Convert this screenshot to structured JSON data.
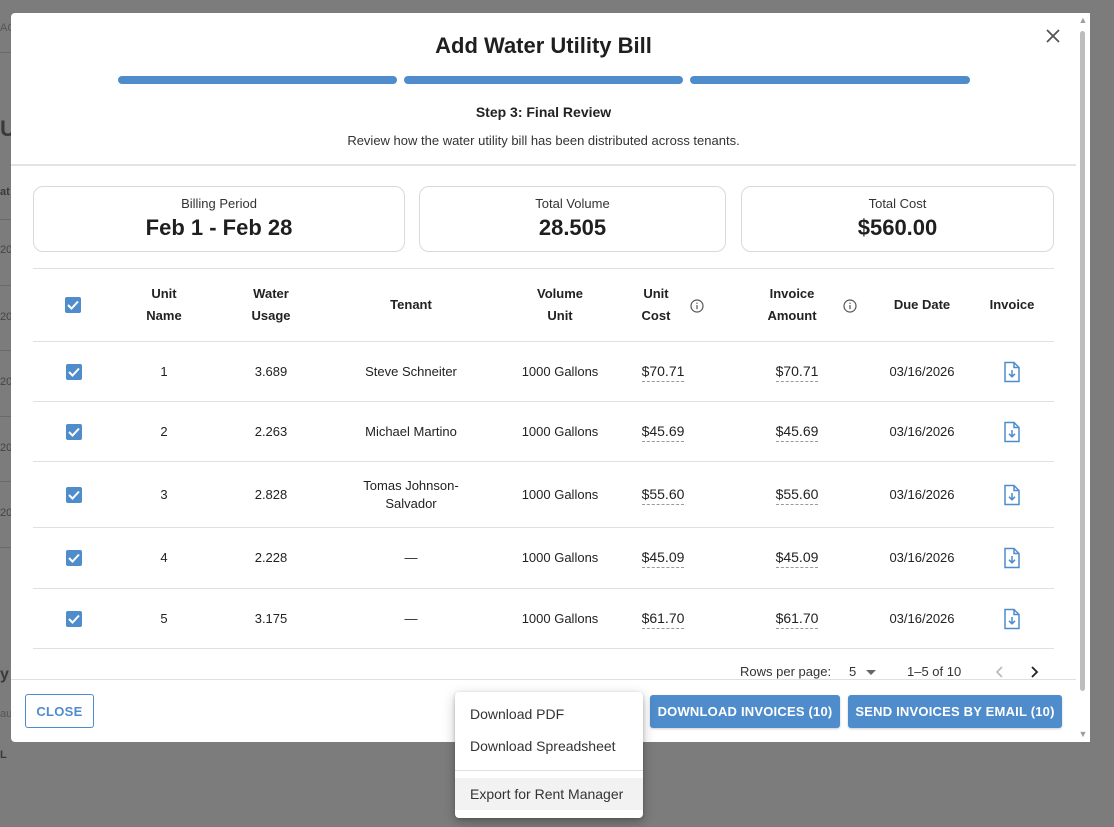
{
  "background": {
    "fragments": [
      "AC",
      "Ut",
      "at",
      "20",
      "20",
      "20",
      "20",
      "20",
      "y",
      "au",
      "L"
    ]
  },
  "modal": {
    "title": "Add Water Utility Bill",
    "close_icon": "close-icon",
    "progress_steps_complete": 3,
    "step_title": "Step 3: Final Review",
    "step_description": "Review how the water utility bill has been distributed across tenants."
  },
  "summary": {
    "billing_period_label": "Billing Period",
    "billing_period_value": "Feb 1 - Feb 28",
    "total_volume_label": "Total Volume",
    "total_volume_value": "28.505",
    "total_cost_label": "Total Cost",
    "total_cost_value": "$560.00"
  },
  "table": {
    "headers": {
      "unit_name_1": "Unit",
      "unit_name_2": "Name",
      "water_usage_1": "Water",
      "water_usage_2": "Usage",
      "tenant": "Tenant",
      "volume_unit_1": "Volume",
      "volume_unit_2": "Unit",
      "unit_cost_1": "Unit",
      "unit_cost_2": "Cost",
      "invoice_amount_1": "Invoice",
      "invoice_amount_2": "Amount",
      "due_date": "Due Date",
      "invoice": "Invoice"
    },
    "rows": [
      {
        "unit": "1",
        "usage": "3.689",
        "tenant_1": "Steve Schneiter",
        "tenant_2": "",
        "volume_unit": "1000 Gallons",
        "unit_cost": "$70.71",
        "amount": "$70.71",
        "due": "03/16/2026"
      },
      {
        "unit": "2",
        "usage": "2.263",
        "tenant_1": "Michael Martino",
        "tenant_2": "",
        "volume_unit": "1000 Gallons",
        "unit_cost": "$45.69",
        "amount": "$45.69",
        "due": "03/16/2026"
      },
      {
        "unit": "3",
        "usage": "2.828",
        "tenant_1": "Tomas Johnson-",
        "tenant_2": "Salvador",
        "volume_unit": "1000 Gallons",
        "unit_cost": "$55.60",
        "amount": "$55.60",
        "due": "03/16/2026"
      },
      {
        "unit": "4",
        "usage": "2.228",
        "tenant_1": "—",
        "tenant_2": "",
        "volume_unit": "1000 Gallons",
        "unit_cost": "$45.09",
        "amount": "$45.09",
        "due": "03/16/2026"
      },
      {
        "unit": "5",
        "usage": "3.175",
        "tenant_1": "—",
        "tenant_2": "",
        "volume_unit": "1000 Gallons",
        "unit_cost": "$61.70",
        "amount": "$61.70",
        "due": "03/16/2026"
      }
    ]
  },
  "pagination": {
    "rows_per_page_label": "Rows per page:",
    "rows_per_page_value": "5",
    "range_text": "1–5 of 10"
  },
  "footer": {
    "close_label": "CLOSE",
    "download_label": "DOWNLOAD INVOICES (10)",
    "send_label": "SEND INVOICES BY EMAIL (10)"
  },
  "menu": {
    "items": [
      "Download PDF",
      "Download Spreadsheet",
      "Export for Rent Manager"
    ]
  },
  "colors": {
    "accent": "#4f8ccb",
    "overlay": "#7c7c7c"
  }
}
